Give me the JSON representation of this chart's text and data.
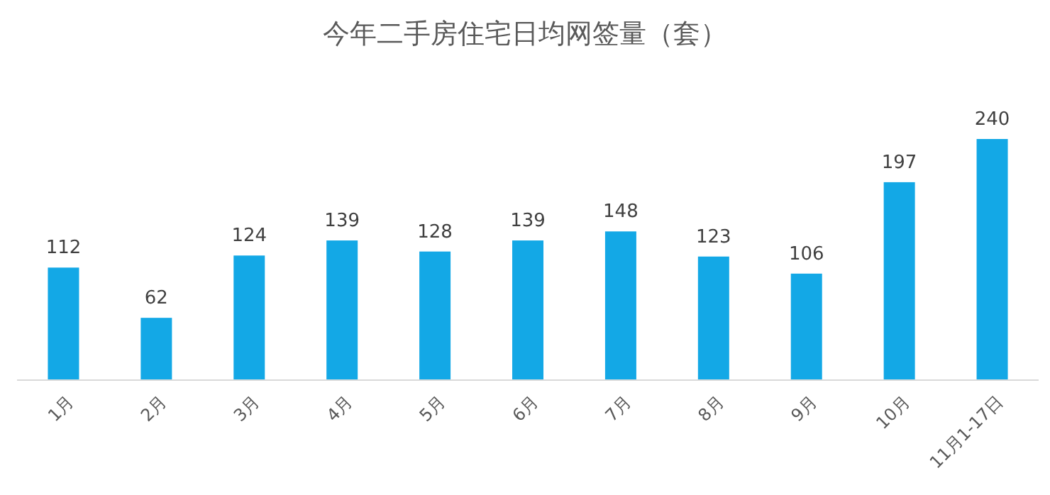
{
  "chart_data": {
    "type": "bar",
    "title": "今年二手房住宅日均网签量（套）",
    "categories": [
      "1月",
      "2月",
      "3月",
      "4月",
      "5月",
      "6月",
      "7月",
      "8月",
      "9月",
      "10月",
      "11月1-17日"
    ],
    "values": [
      112,
      62,
      124,
      139,
      128,
      139,
      148,
      123,
      106,
      197,
      240
    ],
    "color": "#13a8e6",
    "data_labels": true
  }
}
